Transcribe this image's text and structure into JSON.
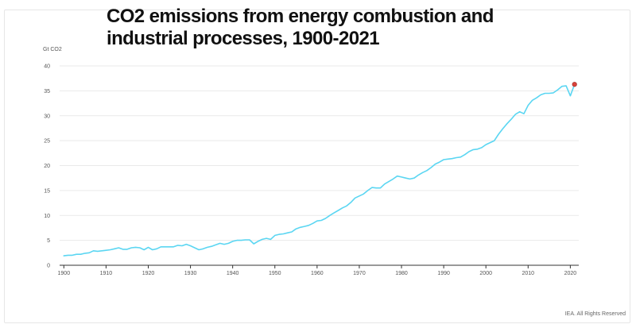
{
  "title": {
    "line1": "CO2 emissions from energy combustion and",
    "line2": "industrial processes, 1900-2021"
  },
  "source_note": "IEA. All Rights Reserved",
  "colors": {
    "line": "#5bd6f2",
    "highlight_marker": "#d9433b",
    "grid": "#e9e9e9",
    "axis": "#333333"
  },
  "chart_data": {
    "type": "line",
    "title": "CO2 emissions from energy combustion and industrial processes, 1900-2021",
    "ylabel": "Gt CO2",
    "xlabel": "",
    "xlim": [
      1899,
      2022
    ],
    "ylim": [
      0,
      40
    ],
    "x_ticks": [
      1900,
      1910,
      1920,
      1930,
      1940,
      1950,
      1960,
      1970,
      1980,
      1990,
      2000,
      2010,
      2020
    ],
    "y_ticks": [
      0,
      5,
      10,
      15,
      20,
      25,
      30,
      35,
      40
    ],
    "grid": "horizontal",
    "highlight": {
      "x": 2021,
      "y": 36.3
    },
    "series": [
      {
        "x": [
          1900,
          1901,
          1902,
          1903,
          1904,
          1905,
          1906,
          1907,
          1908,
          1909,
          1910,
          1911,
          1912,
          1913,
          1914,
          1915,
          1916,
          1917,
          1918,
          1919,
          1920,
          1921,
          1922,
          1923,
          1924,
          1925,
          1926,
          1927,
          1928,
          1929,
          1930,
          1931,
          1932,
          1933,
          1934,
          1935,
          1936,
          1937,
          1938,
          1939,
          1940,
          1941,
          1942,
          1943,
          1944,
          1945,
          1946,
          1947,
          1948,
          1949,
          1950,
          1951,
          1952,
          1953,
          1954,
          1955,
          1956,
          1957,
          1958,
          1959,
          1960,
          1961,
          1962,
          1963,
          1964,
          1965,
          1966,
          1967,
          1968,
          1969,
          1970,
          1971,
          1972,
          1973,
          1974,
          1975,
          1976,
          1977,
          1978,
          1979,
          1980,
          1981,
          1982,
          1983,
          1984,
          1985,
          1986,
          1987,
          1988,
          1989,
          1990,
          1991,
          1992,
          1993,
          1994,
          1995,
          1996,
          1997,
          1998,
          1999,
          2000,
          2001,
          2002,
          2003,
          2004,
          2005,
          2006,
          2007,
          2008,
          2009,
          2010,
          2011,
          2012,
          2013,
          2014,
          2015,
          2016,
          2017,
          2018,
          2019,
          2020,
          2021
        ],
        "values": [
          1.9,
          2.0,
          2.0,
          2.2,
          2.2,
          2.4,
          2.5,
          2.9,
          2.8,
          2.9,
          3.0,
          3.1,
          3.3,
          3.5,
          3.2,
          3.2,
          3.5,
          3.6,
          3.5,
          3.1,
          3.6,
          3.1,
          3.3,
          3.7,
          3.7,
          3.7,
          3.7,
          4.0,
          3.9,
          4.2,
          3.9,
          3.5,
          3.1,
          3.3,
          3.6,
          3.8,
          4.1,
          4.4,
          4.2,
          4.4,
          4.8,
          5.0,
          5.0,
          5.1,
          5.1,
          4.3,
          4.8,
          5.2,
          5.4,
          5.2,
          6.0,
          6.2,
          6.3,
          6.5,
          6.7,
          7.3,
          7.6,
          7.8,
          8.0,
          8.4,
          8.9,
          9.0,
          9.4,
          10.0,
          10.5,
          11.0,
          11.5,
          11.9,
          12.6,
          13.5,
          13.9,
          14.3,
          15.0,
          15.6,
          15.5,
          15.5,
          16.3,
          16.8,
          17.3,
          17.9,
          17.7,
          17.5,
          17.3,
          17.5,
          18.1,
          18.6,
          19.0,
          19.6,
          20.3,
          20.7,
          21.2,
          21.3,
          21.4,
          21.6,
          21.7,
          22.2,
          22.8,
          23.2,
          23.3,
          23.6,
          24.2,
          24.6,
          25.0,
          26.3,
          27.4,
          28.4,
          29.3,
          30.3,
          30.8,
          30.4,
          32.1,
          33.1,
          33.6,
          34.2,
          34.5,
          34.5,
          34.6,
          35.2,
          35.9,
          36.0,
          34.0,
          36.3
        ]
      }
    ]
  }
}
